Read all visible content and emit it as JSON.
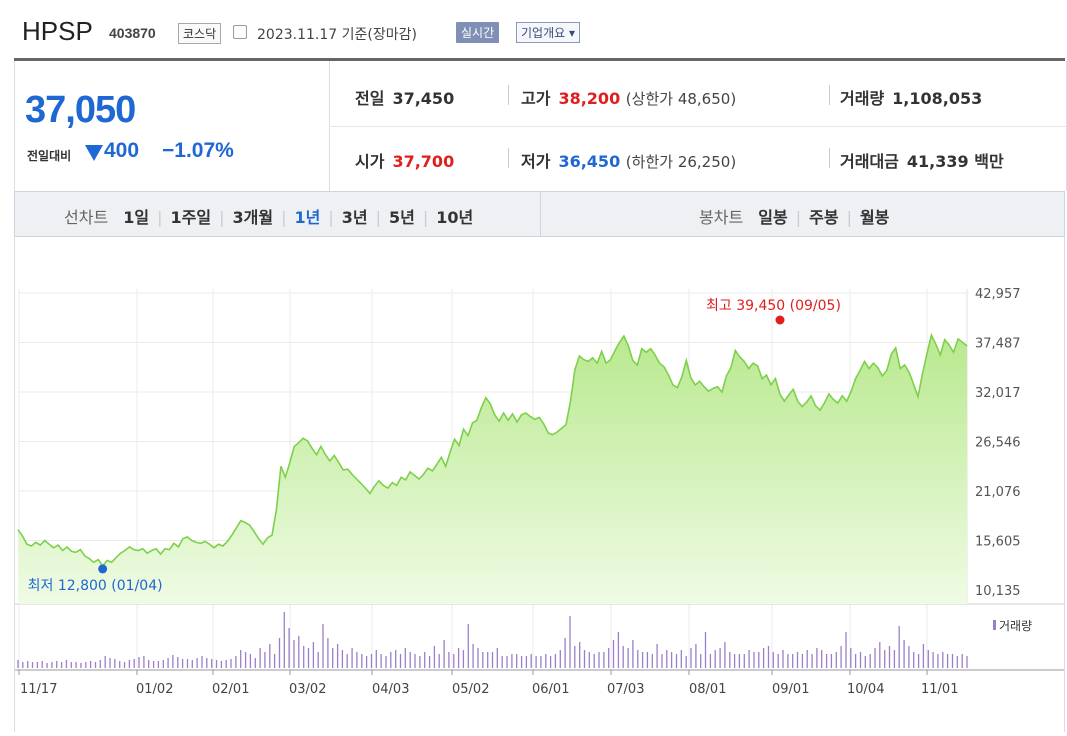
{
  "stock": {
    "name": "HPSP",
    "code": "403870",
    "market": "코스닥",
    "date_text": "2023.11.17 기준(장마감)",
    "realtime_label": "실시간",
    "company_label": "기업개요 ▾"
  },
  "price": {
    "current": "37,050",
    "vs_label": "전일대비",
    "change": "400",
    "change_pct": "−1.07%"
  },
  "quote": {
    "prev_label": "전일",
    "prev_value": "37,450",
    "high_label": "고가",
    "high_value": "38,200",
    "upper_limit_label": "상한가",
    "upper_limit_value": "48,650",
    "volume_label": "거래량",
    "volume_value": "1,108,053",
    "open_label": "시가",
    "open_value": "37,700",
    "low_label": "저가",
    "low_value": "36,450",
    "lower_limit_label": "하한가",
    "lower_limit_value": "26,250",
    "amount_label": "거래대금",
    "amount_value": "41,339",
    "amount_unit": "백만"
  },
  "toolbar": {
    "line_label": "선차트",
    "periods": [
      "1일",
      "1주일",
      "3개월",
      "1년",
      "3년",
      "5년",
      "10년"
    ],
    "selected_period": "1년",
    "candle_label": "봉차트",
    "candles": [
      "일봉",
      "주봉",
      "월봉"
    ]
  },
  "chart_data": {
    "type": "area",
    "title": "",
    "ylim": [
      10135,
      42957
    ],
    "y_ticks": [
      "42,957",
      "37,487",
      "32,017",
      "26,546",
      "21,076",
      "15,605",
      "10,135"
    ],
    "x_ticks": [
      "11/17",
      "01/02",
      "02/01",
      "03/02",
      "04/03",
      "05/02",
      "06/01",
      "07/03",
      "08/01",
      "09/01",
      "10/04",
      "11/01"
    ],
    "volume_label": "거래량",
    "high_annotation": "최고 39,450 (09/05)",
    "low_annotation": "최저 12,800 (01/04)",
    "line_color": "#7dd14a",
    "fill_color": "#cfeeb0",
    "series": [
      {
        "name": "",
        "points": [
          [
            0,
            16800
          ],
          [
            3,
            16100
          ],
          [
            6,
            15200
          ],
          [
            9,
            15000
          ],
          [
            12,
            15400
          ],
          [
            15,
            15100
          ],
          [
            18,
            15600
          ],
          [
            21,
            15200
          ],
          [
            24,
            14800
          ],
          [
            27,
            15100
          ],
          [
            30,
            14500
          ],
          [
            33,
            14900
          ],
          [
            36,
            14400
          ],
          [
            39,
            14300
          ],
          [
            42,
            14600
          ],
          [
            45,
            13900
          ],
          [
            48,
            13600
          ],
          [
            51,
            13200
          ],
          [
            54,
            13500
          ],
          [
            57,
            12800
          ],
          [
            60,
            13400
          ],
          [
            63,
            13200
          ],
          [
            66,
            13700
          ],
          [
            69,
            14200
          ],
          [
            72,
            14500
          ],
          [
            75,
            14900
          ],
          [
            78,
            14600
          ],
          [
            81,
            14500
          ],
          [
            84,
            14700
          ],
          [
            87,
            14200
          ],
          [
            90,
            14500
          ],
          [
            93,
            14700
          ],
          [
            96,
            14100
          ],
          [
            99,
            14700
          ],
          [
            102,
            14600
          ],
          [
            105,
            15300
          ],
          [
            108,
            14900
          ],
          [
            111,
            15800
          ],
          [
            114,
            16000
          ],
          [
            117,
            15600
          ],
          [
            120,
            15400
          ],
          [
            123,
            15300
          ],
          [
            126,
            15500
          ],
          [
            129,
            15200
          ],
          [
            132,
            14800
          ],
          [
            135,
            15200
          ],
          [
            138,
            15000
          ],
          [
            141,
            15500
          ],
          [
            144,
            16200
          ],
          [
            147,
            17000
          ],
          [
            150,
            17800
          ],
          [
            153,
            17600
          ],
          [
            156,
            17300
          ],
          [
            159,
            16600
          ],
          [
            162,
            15800
          ],
          [
            165,
            15200
          ],
          [
            168,
            15900
          ],
          [
            171,
            16200
          ],
          [
            174,
            19000
          ],
          [
            177,
            23800
          ],
          [
            180,
            22600
          ],
          [
            183,
            24200
          ],
          [
            186,
            26000
          ],
          [
            189,
            26400
          ],
          [
            192,
            26900
          ],
          [
            195,
            26600
          ],
          [
            198,
            25800
          ],
          [
            201,
            25100
          ],
          [
            204,
            26000
          ],
          [
            207,
            25100
          ],
          [
            210,
            24400
          ],
          [
            213,
            25000
          ],
          [
            216,
            24200
          ],
          [
            219,
            23400
          ],
          [
            222,
            23500
          ],
          [
            225,
            22900
          ],
          [
            228,
            22400
          ],
          [
            231,
            21900
          ],
          [
            234,
            21400
          ],
          [
            237,
            20800
          ],
          [
            240,
            21600
          ],
          [
            243,
            22200
          ],
          [
            246,
            21700
          ],
          [
            249,
            21400
          ],
          [
            252,
            22000
          ],
          [
            255,
            21700
          ],
          [
            258,
            22600
          ],
          [
            261,
            22300
          ],
          [
            264,
            23200
          ],
          [
            267,
            22800
          ],
          [
            270,
            22400
          ],
          [
            273,
            22900
          ],
          [
            276,
            23600
          ],
          [
            279,
            23300
          ],
          [
            282,
            24000
          ],
          [
            285,
            24800
          ],
          [
            288,
            23800
          ],
          [
            291,
            25400
          ],
          [
            294,
            26800
          ],
          [
            297,
            26100
          ],
          [
            300,
            27900
          ],
          [
            303,
            27200
          ],
          [
            306,
            28600
          ],
          [
            309,
            28900
          ],
          [
            312,
            30300
          ],
          [
            315,
            31400
          ],
          [
            318,
            30700
          ],
          [
            321,
            29500
          ],
          [
            324,
            28800
          ],
          [
            327,
            29700
          ],
          [
            330,
            28900
          ],
          [
            333,
            29600
          ],
          [
            336,
            28700
          ],
          [
            339,
            29500
          ],
          [
            342,
            29700
          ],
          [
            345,
            29300
          ],
          [
            348,
            29000
          ],
          [
            351,
            29200
          ],
          [
            354,
            28500
          ],
          [
            357,
            27500
          ],
          [
            360,
            27300
          ],
          [
            363,
            27600
          ],
          [
            366,
            28000
          ],
          [
            369,
            28400
          ],
          [
            372,
            31000
          ],
          [
            375,
            34500
          ],
          [
            378,
            36000
          ],
          [
            381,
            35600
          ],
          [
            384,
            35400
          ],
          [
            387,
            35800
          ],
          [
            390,
            35200
          ],
          [
            393,
            36500
          ],
          [
            396,
            35200
          ],
          [
            399,
            35600
          ],
          [
            402,
            36600
          ],
          [
            405,
            37500
          ],
          [
            408,
            38200
          ],
          [
            411,
            37100
          ],
          [
            414,
            35500
          ],
          [
            417,
            35000
          ],
          [
            420,
            36800
          ],
          [
            423,
            36400
          ],
          [
            426,
            36800
          ],
          [
            429,
            36100
          ],
          [
            432,
            35200
          ],
          [
            435,
            34800
          ],
          [
            438,
            33900
          ],
          [
            441,
            32800
          ],
          [
            444,
            32500
          ],
          [
            447,
            33700
          ],
          [
            450,
            35500
          ],
          [
            453,
            33600
          ],
          [
            456,
            32800
          ],
          [
            459,
            33200
          ],
          [
            462,
            32600
          ],
          [
            465,
            32100
          ],
          [
            468,
            32400
          ],
          [
            471,
            32600
          ],
          [
            474,
            32000
          ],
          [
            477,
            33800
          ],
          [
            480,
            34700
          ],
          [
            483,
            36600
          ],
          [
            486,
            35900
          ],
          [
            489,
            35400
          ],
          [
            492,
            34600
          ],
          [
            495,
            35200
          ],
          [
            498,
            34900
          ],
          [
            501,
            33500
          ],
          [
            504,
            33900
          ],
          [
            507,
            32800
          ],
          [
            510,
            33500
          ],
          [
            513,
            31800
          ],
          [
            516,
            31000
          ],
          [
            519,
            31700
          ],
          [
            522,
            32300
          ],
          [
            525,
            31000
          ],
          [
            528,
            30400
          ],
          [
            531,
            30900
          ],
          [
            534,
            31600
          ],
          [
            537,
            30500
          ],
          [
            540,
            30000
          ],
          [
            543,
            30800
          ],
          [
            546,
            31800
          ],
          [
            549,
            31200
          ],
          [
            552,
            30800
          ],
          [
            555,
            31600
          ],
          [
            558,
            31000
          ],
          [
            561,
            32100
          ],
          [
            564,
            33500
          ],
          [
            567,
            34400
          ],
          [
            570,
            35400
          ],
          [
            573,
            34600
          ],
          [
            576,
            35200
          ],
          [
            579,
            34700
          ],
          [
            582,
            33800
          ],
          [
            585,
            34400
          ],
          [
            588,
            36200
          ],
          [
            591,
            36900
          ],
          [
            594,
            34600
          ],
          [
            597,
            35000
          ],
          [
            600,
            34200
          ],
          [
            603,
            32900
          ],
          [
            606,
            31500
          ],
          [
            609,
            34000
          ],
          [
            612,
            36200
          ],
          [
            615,
            38300
          ],
          [
            618,
            37300
          ],
          [
            621,
            36100
          ],
          [
            624,
            37800
          ],
          [
            627,
            37200
          ],
          [
            630,
            36400
          ],
          [
            633,
            37900
          ],
          [
            636,
            37500
          ],
          [
            639,
            37100
          ]
        ]
      }
    ],
    "volume": [
      8,
      6,
      7,
      6,
      6,
      7,
      5,
      6,
      7,
      6,
      8,
      6,
      6,
      5,
      6,
      7,
      6,
      8,
      12,
      10,
      9,
      7,
      6,
      8,
      9,
      11,
      12,
      8,
      7,
      7,
      8,
      10,
      13,
      11,
      9,
      9,
      8,
      10,
      12,
      10,
      9,
      8,
      7,
      8,
      9,
      12,
      18,
      16,
      14,
      10,
      20,
      16,
      24,
      14,
      30,
      56,
      40,
      28,
      32,
      22,
      20,
      26,
      16,
      44,
      30,
      20,
      24,
      18,
      14,
      20,
      16,
      14,
      12,
      14,
      18,
      14,
      12,
      16,
      18,
      14,
      20,
      16,
      14,
      12,
      16,
      12,
      22,
      14,
      28,
      16,
      14,
      20,
      18,
      44,
      24,
      20,
      16,
      16,
      16,
      20,
      12,
      12,
      14,
      14,
      12,
      12,
      14,
      12,
      12,
      14,
      12,
      14,
      18,
      30,
      52,
      22,
      26,
      18,
      16,
      14,
      16,
      16,
      20,
      28,
      36,
      22,
      20,
      28,
      18,
      16,
      16,
      14,
      24,
      14,
      18,
      16,
      14,
      18,
      12,
      20,
      24,
      14,
      36,
      14,
      18,
      20,
      26,
      16,
      14,
      14,
      14,
      18,
      16,
      16,
      20,
      22,
      16,
      14,
      18,
      14,
      14,
      16,
      14,
      18,
      14,
      20,
      18,
      14,
      14,
      16,
      22,
      36,
      20,
      14,
      16,
      12,
      14,
      20,
      26,
      18,
      22,
      18,
      42,
      28,
      22,
      16,
      14,
      24,
      18,
      16,
      14,
      16,
      14,
      14,
      12,
      14,
      12
    ]
  }
}
